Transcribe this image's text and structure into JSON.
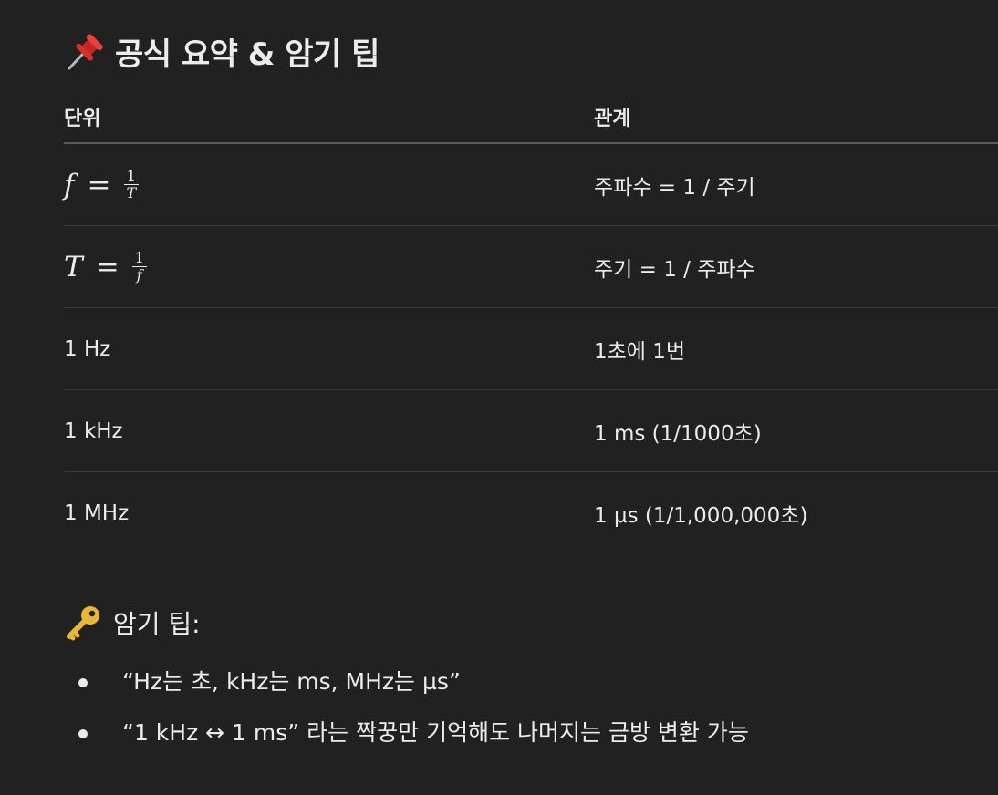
{
  "heading": {
    "icon": "pushpin-icon",
    "text": "공식 요약 & 암기 팁"
  },
  "table": {
    "headers": [
      "단위",
      "관계"
    ],
    "formula_rows": [
      {
        "lhs": "f",
        "eq": "=",
        "num": "1",
        "den": "T",
        "relation": "주파수 = 1 / 주기"
      },
      {
        "lhs": "T",
        "eq": "=",
        "num": "1",
        "den": "f",
        "relation": "주기 = 1 / 주파수"
      }
    ],
    "rows": [
      {
        "unit": "1 Hz",
        "relation": "1초에 1번"
      },
      {
        "unit": "1 kHz",
        "relation": "1 ms (1/1000초)"
      },
      {
        "unit": "1 MHz",
        "relation": "1 µs (1/1,000,000초)"
      }
    ]
  },
  "tips": {
    "icon": "key-icon",
    "title": "암기 팁:",
    "items": [
      "“Hz는 초, kHz는 ms, MHz는 µs”",
      "“1 kHz ↔ 1 ms” 라는 짝꿍만 기억해도 나머지는 금방 변환 가능"
    ]
  },
  "colors": {
    "background": "#212121",
    "text": "#ececec",
    "pin_red": "#d9302e",
    "key_gold": "#e9b736"
  }
}
